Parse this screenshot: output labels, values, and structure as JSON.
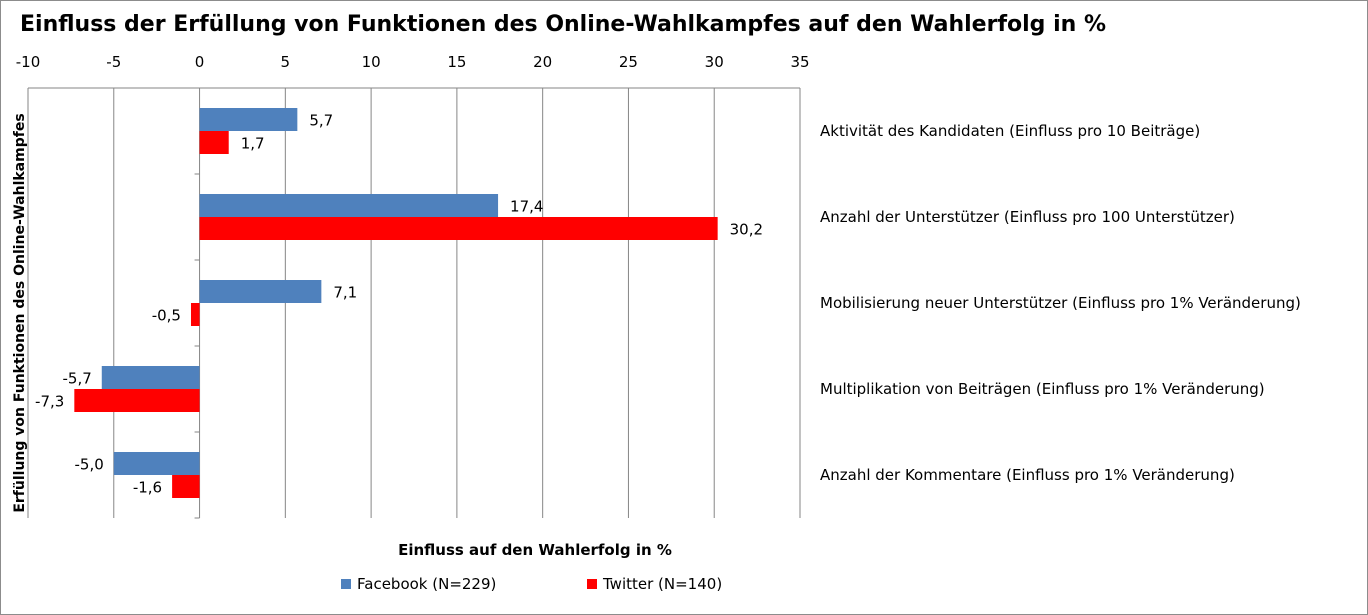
{
  "colors": {
    "facebook": "#4f81bd",
    "twitter": "#ff0000",
    "grid": "#868686",
    "axis": "#868686"
  },
  "chart_data": {
    "type": "bar",
    "orientation": "horizontal",
    "title": "Einfluss der Erfüllung von Funktionen des Online-Wahlkampfes auf den Wahlerfolg in %",
    "xlabel": "Einfluss auf den Wahlerfolg in %",
    "ylabel": "Erfüllung  von Funktionen des Online-Wahlkampfes",
    "xlim": [
      -10,
      35
    ],
    "xticks": [
      -10,
      -5,
      0,
      5,
      10,
      15,
      20,
      25,
      30,
      35
    ],
    "x_axis_position": "top",
    "grid": true,
    "legend_position": "bottom",
    "categories": [
      "Aktivität des Kandidaten (Einfluss pro 10 Beiträge)",
      "Anzahl der Unterstützer (Einfluss pro 100 Unterstützer)",
      "Mobilisierung neuer Unterstützer (Einfluss pro 1% Veränderung)",
      "Multiplikation von Beiträgen  (Einfluss pro 1% Veränderung)",
      "Anzahl der Kommentare  (Einfluss pro 1% Veränderung)"
    ],
    "series": [
      {
        "name": "Facebook (N=229)",
        "values": [
          5.7,
          17.4,
          7.1,
          -5.7,
          -5.0
        ],
        "labels": [
          "5,7",
          "17,4",
          "7,1",
          "-5,7",
          "-5,0"
        ]
      },
      {
        "name": "Twitter (N=140)",
        "values": [
          1.7,
          30.2,
          -0.5,
          -7.3,
          -1.6
        ],
        "labels": [
          "1,7",
          "30,2",
          "-0,5",
          "-7,3",
          "-1,6"
        ]
      }
    ]
  }
}
